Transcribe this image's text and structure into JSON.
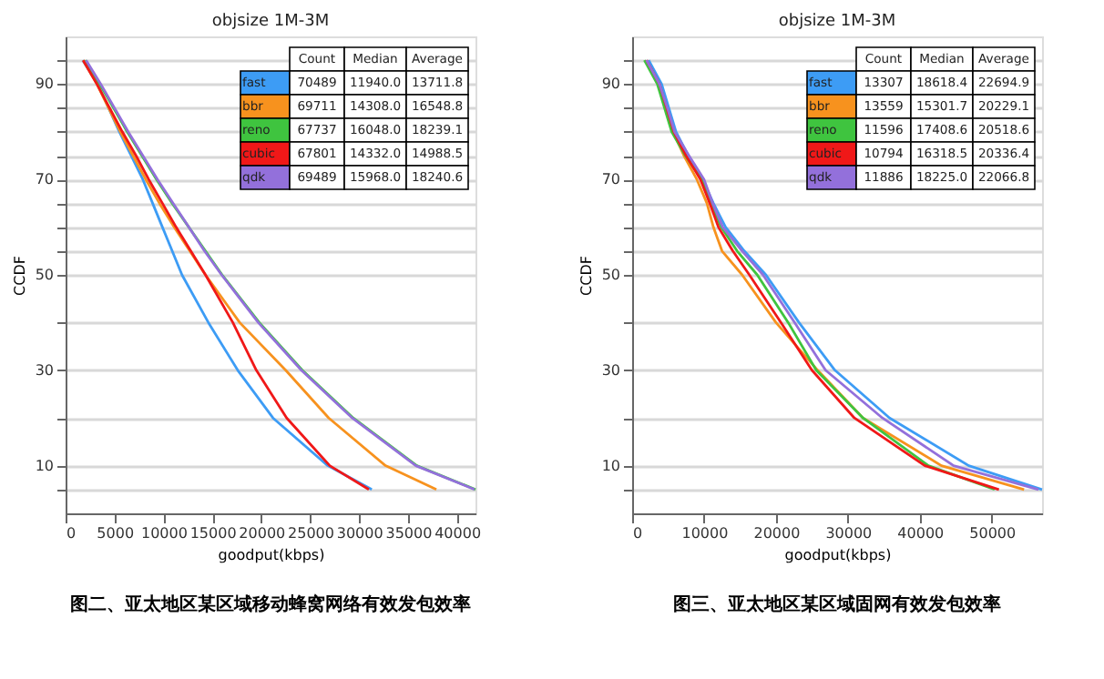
{
  "chart_data": [
    {
      "type": "line",
      "title": "objsize 1M-3M",
      "xlabel": "goodput(kbps)",
      "ylabel": "CCDF",
      "xlim": [
        0,
        41900
      ],
      "xticks": [
        0,
        5000,
        10000,
        15000,
        20000,
        25000,
        30000,
        35000,
        40000
      ],
      "ylim": [
        0,
        100
      ],
      "yticks": [
        {
          "value": 5,
          "label": null
        },
        10,
        {
          "value": 20,
          "label": null
        },
        30,
        {
          "value": 40,
          "label": null
        },
        50,
        {
          "value": 55,
          "label": null
        },
        {
          "value": 60,
          "label": null
        },
        {
          "value": 65,
          "label": null
        },
        70,
        {
          "value": 75,
          "label": null
        },
        {
          "value": 80,
          "label": null
        },
        {
          "value": 85,
          "label": null
        },
        90,
        {
          "value": 95,
          "label": null
        }
      ],
      "grid": "y",
      "legend": "top right",
      "marker": "none",
      "line_style": "solid",
      "annotations": [
        "图二、亚太地区某区域移动蜂窝网络有效发包效率",
        "Count",
        "Median",
        "Average",
        "70489",
        "11940.0",
        "13711.8",
        "69711",
        "14308.0",
        "16548.8",
        "67737",
        "16048.0",
        "18239.1",
        "67801",
        "14332.0",
        "14988.5",
        "69489",
        "15968.0",
        "18240.6"
      ],
      "series": [
        {
          "name": "fast",
          "color": "#3d9cf5",
          "x": [
            1750,
            3300,
            4400,
            5500,
            6700,
            7900,
            8900,
            9900,
            10900,
            11900,
            14600,
            17600,
            21200,
            26800,
            31300
          ],
          "values": [
            95,
            90,
            85,
            80,
            75,
            70,
            65,
            60,
            55,
            50,
            40,
            30,
            20,
            10,
            5
          ]
        },
        {
          "name": "bbr",
          "color": "#f7921e",
          "x": [
            1800,
            3200,
            4400,
            5600,
            6900,
            8200,
            9600,
            11100,
            12700,
            14300,
            17800,
            22500,
            26900,
            32700,
            37900
          ],
          "values": [
            95,
            90,
            85,
            80,
            75,
            70,
            65,
            60,
            55,
            50,
            40,
            30,
            20,
            10,
            5
          ]
        },
        {
          "name": "reno",
          "color": "#3fc43f",
          "x": [
            2000,
            3500,
            4900,
            6300,
            7800,
            9300,
            10900,
            12600,
            14300,
            16000,
            19800,
            24200,
            29400,
            35900,
            41900
          ],
          "values": [
            95,
            90,
            85,
            80,
            75,
            70,
            65,
            60,
            55,
            50,
            40,
            30,
            20,
            10,
            5
          ]
        },
        {
          "name": "cubic",
          "color": "#f01818",
          "x": [
            1800,
            3200,
            4500,
            5800,
            7200,
            8500,
            9900,
            11300,
            12800,
            14300,
            17100,
            19500,
            22600,
            27000,
            31000
          ],
          "values": [
            95,
            90,
            85,
            80,
            75,
            70,
            65,
            60,
            55,
            50,
            40,
            30,
            20,
            10,
            5
          ]
        },
        {
          "name": "qdk",
          "color": "#9370db",
          "x": [
            2100,
            3600,
            5000,
            6400,
            7900,
            9400,
            11000,
            12600,
            14200,
            15950,
            19700,
            24100,
            29300,
            35800,
            41800
          ],
          "values": [
            95,
            90,
            85,
            80,
            75,
            70,
            65,
            60,
            55,
            50,
            40,
            30,
            20,
            10,
            5
          ]
        }
      ]
    },
    {
      "type": "line",
      "title": "objsize 1M-3M",
      "xlabel": "goodput(kbps)",
      "ylabel": "CCDF",
      "xlim": [
        0,
        57000
      ],
      "xticks": [
        0,
        10000,
        20000,
        30000,
        40000,
        50000
      ],
      "ylim": [
        0,
        100
      ],
      "yticks": [
        {
          "value": 5,
          "label": null
        },
        10,
        {
          "value": 20,
          "label": null
        },
        30,
        {
          "value": 40,
          "label": null
        },
        50,
        {
          "value": 55,
          "label": null
        },
        {
          "value": 60,
          "label": null
        },
        {
          "value": 65,
          "label": null
        },
        70,
        {
          "value": 75,
          "label": null
        },
        {
          "value": 80,
          "label": null
        },
        {
          "value": 85,
          "label": null
        },
        90,
        {
          "value": 95,
          "label": null
        }
      ],
      "grid": "y",
      "legend": "top right",
      "marker": "none",
      "line_style": "solid",
      "annotations": [
        "图三、亚太地区某区域固网有效发包效率",
        "Count",
        "Median",
        "Average",
        "13307",
        "18618.4",
        "22694.9",
        "13559",
        "15301.7",
        "20229.1",
        "11596",
        "17408.6",
        "20518.6",
        "10794",
        "16318.5",
        "20336.4",
        "11886",
        "18225.0",
        "22066.8"
      ],
      "series": [
        {
          "name": "fast",
          "color": "#3d9cf5",
          "x": [
            2300,
            4100,
            5100,
            6100,
            7800,
            9800,
            11300,
            13000,
            15600,
            18600,
            23200,
            28200,
            35800,
            46800,
            57000
          ],
          "values": [
            95,
            90,
            85,
            80,
            75,
            70,
            65,
            60,
            55,
            50,
            40,
            30,
            20,
            10,
            5
          ]
        },
        {
          "name": "bbr",
          "color": "#f7921e",
          "x": [
            null,
            null,
            4700,
            5700,
            7200,
            9000,
            10400,
            11300,
            12500,
            15300,
            20000,
            25800,
            32100,
            43000,
            54500
          ],
          "values": [
            null,
            null,
            85,
            80,
            75,
            70,
            65,
            60,
            55,
            50,
            40,
            30,
            20,
            10,
            5
          ]
        },
        {
          "name": "reno",
          "color": "#3fc43f",
          "x": [
            1700,
            3500,
            4500,
            5500,
            7400,
            9700,
            11000,
            12400,
            14600,
            17400,
            21700,
            25600,
            32100,
            41200,
            50400
          ],
          "values": [
            95,
            90,
            85,
            80,
            75,
            70,
            65,
            60,
            55,
            50,
            40,
            30,
            20,
            10,
            5
          ]
        },
        {
          "name": "cubic",
          "color": "#f01818",
          "x": [
            2000,
            3800,
            4800,
            5800,
            7500,
            9500,
            10800,
            12000,
            14000,
            16300,
            20700,
            25000,
            30900,
            40700,
            51000
          ],
          "values": [
            95,
            90,
            85,
            80,
            75,
            70,
            65,
            60,
            55,
            50,
            40,
            30,
            20,
            10,
            5
          ]
        },
        {
          "name": "qdk",
          "color": "#9370db",
          "x": [
            2000,
            3800,
            4900,
            5900,
            7900,
            10000,
            11200,
            12600,
            15300,
            18200,
            22600,
            26900,
            34800,
            44700,
            56500
          ],
          "values": [
            95,
            90,
            85,
            80,
            75,
            70,
            65,
            60,
            55,
            50,
            40,
            30,
            20,
            10,
            5
          ]
        }
      ]
    }
  ]
}
